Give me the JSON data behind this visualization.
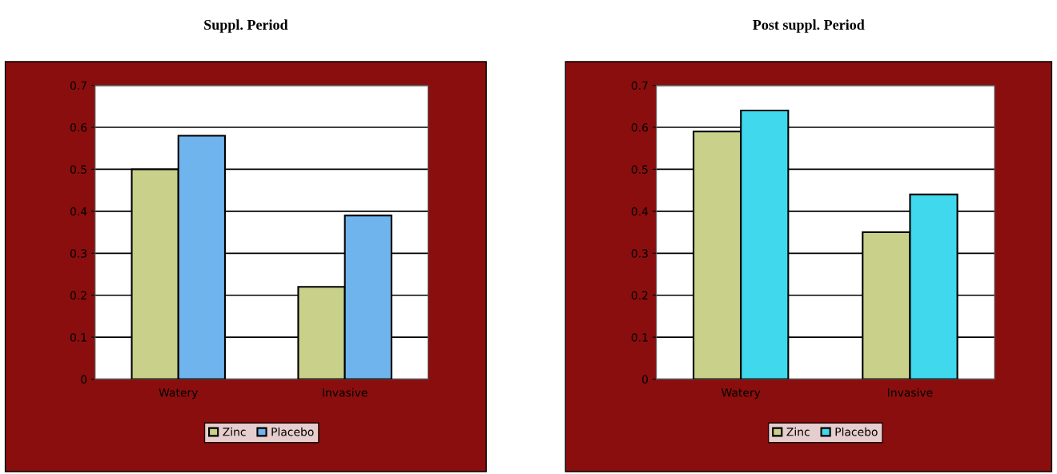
{
  "chart_data": [
    {
      "type": "bar",
      "title": "Suppl. Period",
      "categories": [
        "Watery",
        "Invasive"
      ],
      "series": [
        {
          "name": "Zinc",
          "color": "#c8d08a",
          "values": [
            0.5,
            0.22
          ]
        },
        {
          "name": "Placebo",
          "color": "#6fb4ec",
          "values": [
            0.58,
            0.39
          ]
        }
      ],
      "ylim": [
        0,
        0.7
      ],
      "yticks": [
        {
          "value": 0,
          "label": "0"
        },
        0.1,
        0.2,
        0.3,
        0.4,
        0.5,
        0.6,
        0.7
      ],
      "grid": "y",
      "legend": "bottom"
    },
    {
      "type": "bar",
      "title": "Post suppl. Period",
      "categories": [
        "Watery",
        "Invasive"
      ],
      "series": [
        {
          "name": "Zinc",
          "color": "#c8d08a",
          "values": [
            0.59,
            0.35
          ]
        },
        {
          "name": "Placebo",
          "color": "#3fd8ec",
          "values": [
            0.64,
            0.44
          ]
        }
      ],
      "ylim": [
        0,
        0.7
      ],
      "yticks": [
        {
          "value": 0,
          "label": "0"
        },
        0.1,
        0.2,
        0.3,
        0.4,
        0.5,
        0.6,
        0.7
      ],
      "grid": "y",
      "legend": "bottom"
    }
  ]
}
